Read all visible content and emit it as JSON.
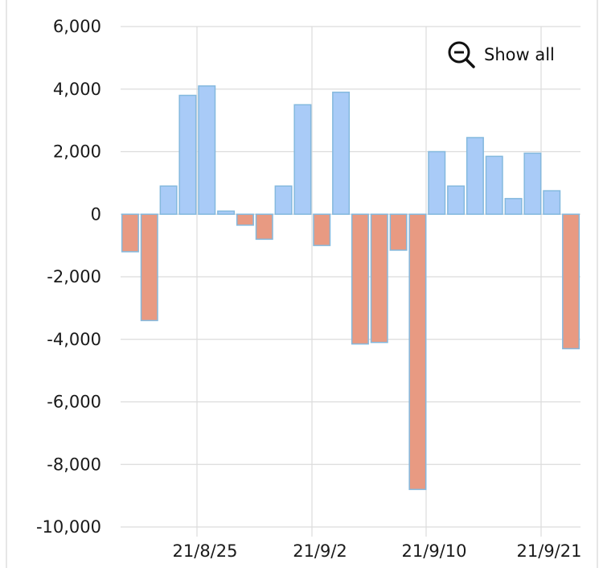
{
  "chart_data": {
    "type": "bar",
    "x_tick_labels": [
      "21/8/25",
      "21/9/2",
      "21/9/10",
      "21/9/21"
    ],
    "y_tick_labels": [
      "6,000",
      "4,000",
      "2,000",
      "0",
      "-2,000",
      "-4,000",
      "-6,000",
      "-8,000",
      "-10,000"
    ],
    "ylim": [
      -10000,
      6000
    ],
    "grid": true,
    "legend": "none",
    "values": [
      -1200,
      -3400,
      900,
      3800,
      4100,
      100,
      -350,
      -800,
      900,
      3500,
      -1000,
      3900,
      -4150,
      -4100,
      -1150,
      -8800,
      2000,
      900,
      2450,
      1850,
      500,
      1950,
      750,
      -4300
    ],
    "colors": {
      "positive_fill": "#a9cbf7",
      "negative_fill": "#e89a82",
      "bar_border": "#84b9de",
      "grid": "#dcdcdc"
    }
  },
  "controls": {
    "show_all_label": "Show all",
    "show_all_icon": "zoom-out-icon"
  }
}
